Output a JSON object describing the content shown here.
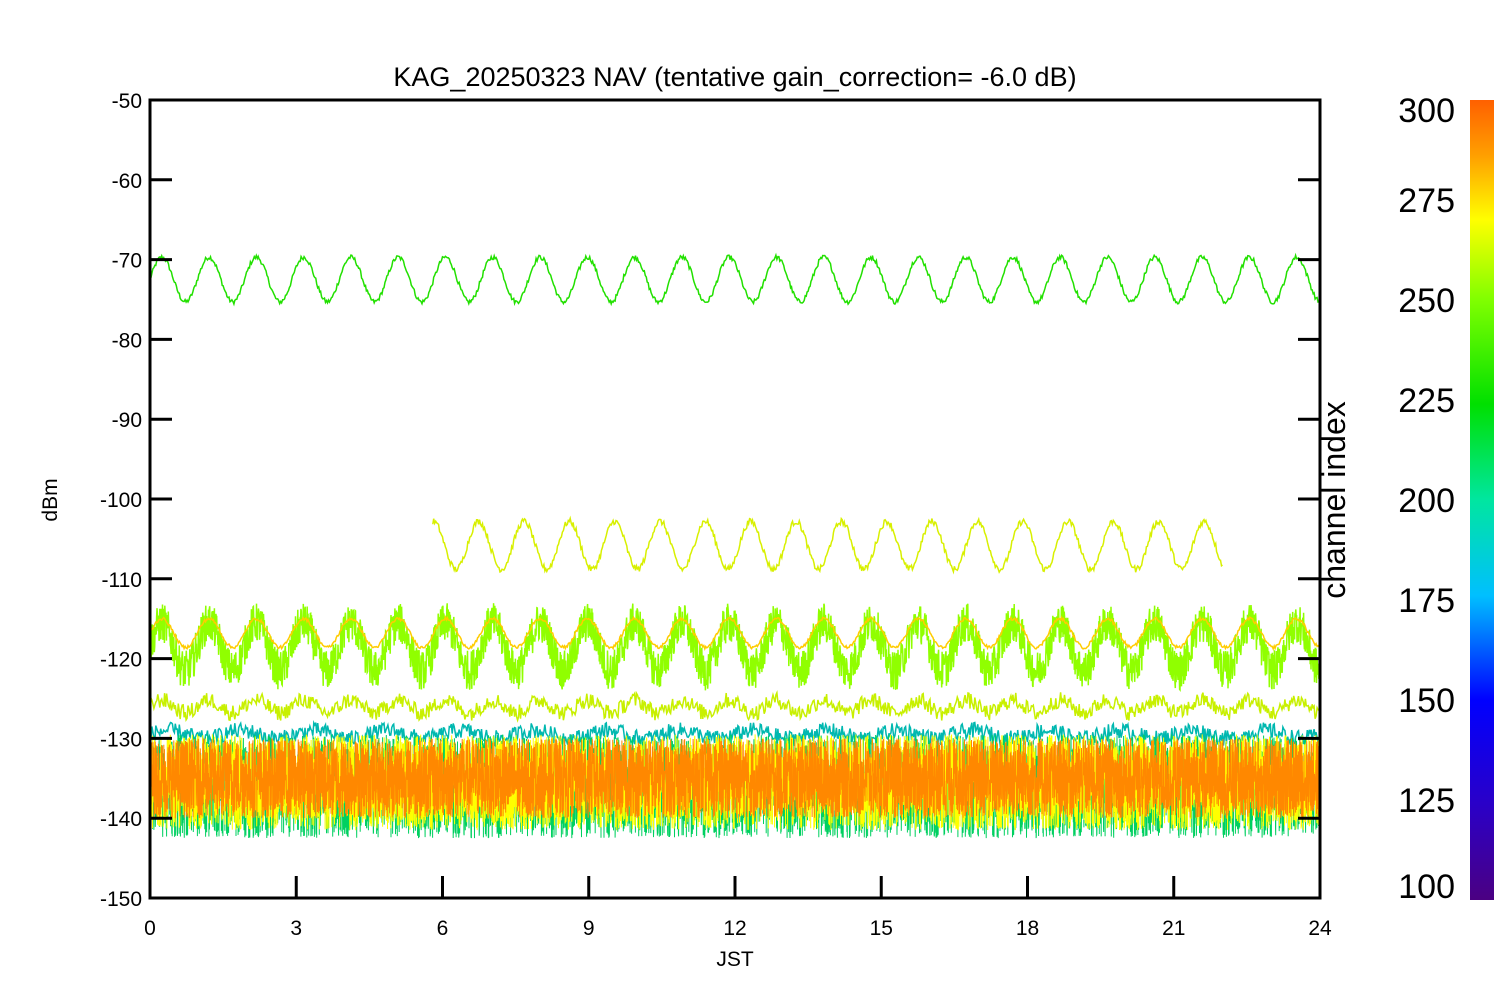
{
  "chart_data": {
    "type": "line",
    "title": "KAG_20250323 NAV (tentative gain_correction= -6.0 dB)",
    "xlabel": "JST",
    "ylabel": "dBm",
    "xlim": [
      0,
      24
    ],
    "ylim": [
      -150,
      -50
    ],
    "xticks": [
      0,
      3,
      6,
      9,
      12,
      15,
      18,
      21,
      24
    ],
    "yticks": [
      -50,
      -60,
      -70,
      -80,
      -90,
      -100,
      -110,
      -120,
      -130,
      -140,
      -150
    ],
    "grid": false,
    "colorbar": {
      "label": "channel index",
      "range": [
        100,
        300
      ],
      "ticks": [
        100,
        125,
        150,
        175,
        200,
        225,
        250,
        275,
        300
      ],
      "colors": [
        "#4b0082",
        "#0000ff",
        "#00bfff",
        "#00e6a0",
        "#00e000",
        "#80ff00",
        "#ffff00",
        "#ffa000",
        "#ff6000"
      ]
    },
    "series": [
      {
        "color": "#22e000",
        "x_start": 0,
        "x_end": 24,
        "center": -72.5,
        "amplitude": 2.8,
        "period_hours": 0.97,
        "noise": 0.3
      },
      {
        "color": "#d8f000",
        "x_start": 5.8,
        "x_end": 22,
        "center": -105.8,
        "amplitude": 3.0,
        "period_hours": 0.93,
        "noise": 0.4
      },
      {
        "color": "#90ff00",
        "x_start": 0,
        "x_end": 24,
        "center": -118.5,
        "amplitude": 3.0,
        "period_hours": 0.97,
        "noise": 2.5
      },
      {
        "color": "#ffcc00",
        "x_start": 0,
        "x_end": 24,
        "center": -116.8,
        "amplitude": 1.8,
        "period_hours": 0.97,
        "noise": 0.2
      },
      {
        "color": "#c8f000",
        "x_start": 0,
        "x_end": 24,
        "center": -126,
        "amplitude": 0.8,
        "period_hours": 0.97,
        "noise": 1.0
      },
      {
        "color": "#00b8b0",
        "x_start": 0,
        "x_end": 24,
        "center": -129.5,
        "amplitude": 0.5,
        "period_hours": 1.5,
        "noise": 1.0
      },
      {
        "color": "#00d060",
        "x_start": 0,
        "x_end": 24,
        "center": -136,
        "amplitude": 0,
        "period_hours": 1,
        "noise": 6.5
      },
      {
        "color": "#ffff00",
        "x_start": 0,
        "x_end": 24,
        "center": -135.5,
        "amplitude": 0,
        "period_hours": 1,
        "noise": 6.0
      },
      {
        "color": "#ff8800",
        "x_start": 0,
        "x_end": 24,
        "center": -135,
        "amplitude": 0,
        "period_hours": 1,
        "noise": 5.0
      }
    ]
  }
}
